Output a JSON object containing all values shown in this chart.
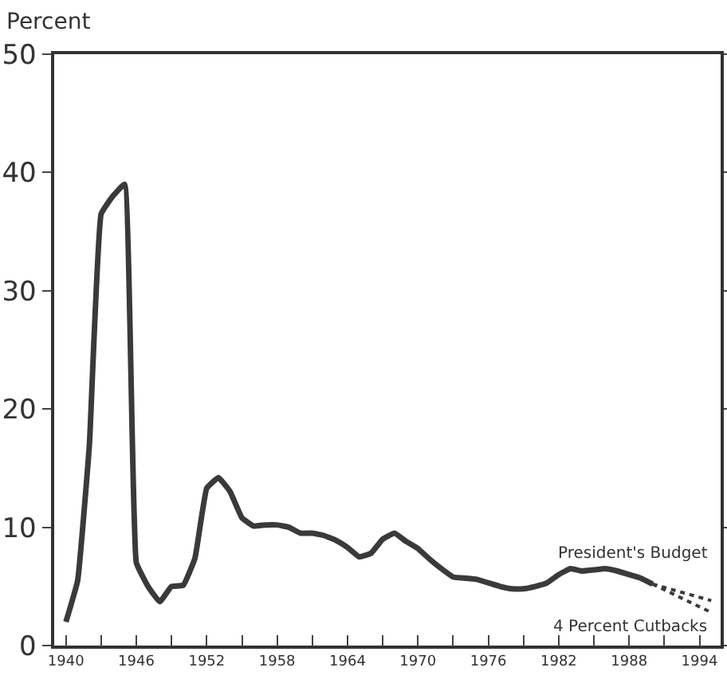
{
  "chart_data": {
    "type": "line",
    "ylabel": "Percent",
    "xlim": [
      1939,
      1995.8
    ],
    "ylim": [
      0,
      50
    ],
    "yticks": [
      0,
      10,
      20,
      30,
      40,
      50
    ],
    "xticks": [
      1940,
      {
        "value": 1943,
        "label": null
      },
      1946,
      {
        "value": 1949,
        "label": null
      },
      1952,
      {
        "value": 1955,
        "label": null
      },
      1958,
      {
        "value": 1961,
        "label": null
      },
      1964,
      {
        "value": 1967,
        "label": null
      },
      1970,
      {
        "value": 1973,
        "label": null
      },
      1976,
      {
        "value": 1979,
        "label": null
      },
      1982,
      {
        "value": 1985,
        "label": null
      },
      1988,
      {
        "value": 1991,
        "label": null
      },
      1994
    ],
    "grid": false,
    "legend": false,
    "series": [
      {
        "color": "#3a3a3a",
        "line_style": "solid",
        "x": [
          1940,
          1941,
          1942,
          1943,
          1944,
          1945,
          1946,
          1947,
          1948,
          1949,
          1950,
          1951,
          1952,
          1953,
          1954,
          1955,
          1956,
          1957,
          1958,
          1959,
          1960,
          1961,
          1962,
          1963,
          1964,
          1965,
          1966,
          1967,
          1968,
          1969,
          1970,
          1971,
          1972,
          1973,
          1974,
          1975,
          1976,
          1977,
          1978,
          1979,
          1980,
          1981,
          1982,
          1983,
          1984,
          1985,
          1986,
          1987,
          1988,
          1989,
          1990
        ],
        "values": [
          2,
          5.5,
          17,
          36.5,
          38,
          39,
          7,
          5,
          3.7,
          5,
          5.1,
          7.4,
          13.3,
          14.2,
          13,
          10.8,
          10.1,
          10.2,
          10.2,
          10,
          9.5,
          9.5,
          9.3,
          8.9,
          8.3,
          7.5,
          7.8,
          9,
          9.5,
          8.8,
          8.2,
          7.3,
          6.5,
          5.8,
          5.7,
          5.6,
          5.3,
          5,
          4.8,
          4.8,
          5,
          5.3,
          6,
          6.5,
          6.3,
          6.4,
          6.5,
          6.3,
          6,
          5.7,
          5.2
        ]
      },
      {
        "name": "President's Budget",
        "color": "#3a3a3a",
        "line_style": "dotted",
        "x": [
          1990,
          1995
        ],
        "values": [
          5.2,
          3.8
        ]
      },
      {
        "name": "4 Percent Cutbacks",
        "color": "#3a3a3a",
        "line_style": "dotted",
        "x": [
          1990,
          1995
        ],
        "values": [
          5.2,
          2.8
        ]
      }
    ]
  }
}
